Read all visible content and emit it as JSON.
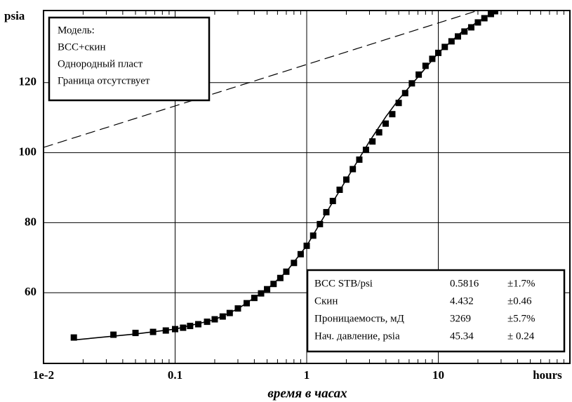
{
  "chart_data": {
    "type": "scatter",
    "x_scale": "log",
    "xlim": [
      0.01,
      100
    ],
    "ylim": [
      39.8,
      140.6
    ],
    "xticks": [
      {
        "value": 0.01,
        "label": "1e-2"
      },
      0.1,
      1,
      10
    ],
    "yticks": [
      60,
      80,
      100,
      120
    ],
    "x_unit": "hours",
    "y_unit": "psia",
    "xlabel": "время в часах",
    "grid": true,
    "series": [
      {
        "style": "markers",
        "color": "#000000",
        "x": [
          0.017,
          0.034,
          0.05,
          0.068,
          0.085,
          0.1,
          0.115,
          0.13,
          0.15,
          0.175,
          0.2,
          0.23,
          0.26,
          0.3,
          0.35,
          0.4,
          0.45,
          0.5,
          0.56,
          0.63,
          0.7,
          0.8,
          0.9,
          1.0,
          1.12,
          1.26,
          1.41,
          1.58,
          1.78,
          2.0,
          2.24,
          2.51,
          2.82,
          3.16,
          3.55,
          3.98,
          4.47,
          5.0,
          5.6,
          6.3,
          7.1,
          8.0,
          9.0,
          10.0,
          11.2,
          12.6,
          14.1,
          15.8,
          17.8,
          20.0,
          22.4,
          25.1,
          27.0
        ],
        "values": [
          47.2,
          48.0,
          48.5,
          48.8,
          49.2,
          49.6,
          50.0,
          50.5,
          51.0,
          51.7,
          52.4,
          53.2,
          54.2,
          55.5,
          57.0,
          58.5,
          59.8,
          61.0,
          62.5,
          64.2,
          66.0,
          68.5,
          71.0,
          73.4,
          76.3,
          79.6,
          83.0,
          86.2,
          89.4,
          92.3,
          95.3,
          98.0,
          100.8,
          103.2,
          105.8,
          108.3,
          111.0,
          114.2,
          117.0,
          119.8,
          122.3,
          124.8,
          126.8,
          128.5,
          130.2,
          131.8,
          133.2,
          134.6,
          135.8,
          137.2,
          138.4,
          139.6,
          140.4
        ]
      },
      {
        "style": "solid",
        "color": "#000000",
        "x": [
          0.017,
          0.03,
          0.05,
          0.1,
          0.2,
          0.3,
          0.5,
          0.7,
          1.0,
          1.5,
          2.0,
          3.0,
          4.0,
          5.0,
          7.0,
          10.0,
          15.0,
          20.0,
          27.0
        ],
        "values": [
          46.5,
          47.4,
          48.2,
          49.6,
          52.3,
          55.4,
          61.0,
          66.0,
          73.4,
          84.5,
          92.3,
          103.2,
          110.3,
          115.2,
          121.6,
          128.5,
          134.4,
          137.4,
          140.4
        ]
      },
      {
        "style": "dashed",
        "color": "#000000",
        "x": [
          0.01,
          20.0
        ],
        "values": [
          101.5,
          140.6
        ]
      }
    ],
    "annotations": {
      "model": [
        "Модель:",
        "ВСС+скин",
        "Однородный пласт",
        "Граница отсутствует"
      ],
      "results": [
        [
          "ВСС  STB/psi",
          "0.5816",
          "±1.7%"
        ],
        [
          "Скин",
          "4.432",
          "±0.46"
        ],
        [
          "Проницаемость, мД",
          "3269",
          "±5.7%"
        ],
        [
          "Нач. давление, psia",
          "45.34",
          "± 0.24"
        ]
      ]
    }
  }
}
